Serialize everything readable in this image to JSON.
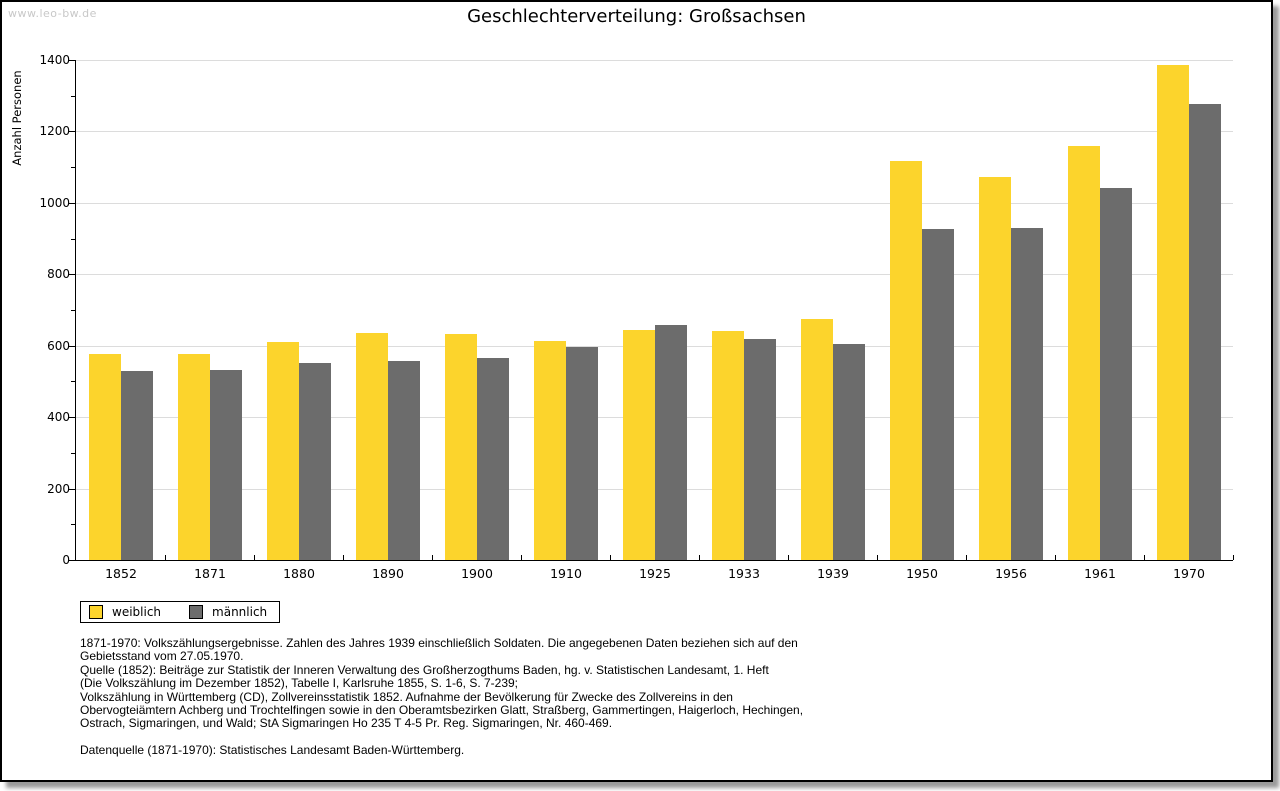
{
  "watermark": "www.leo-bw.de",
  "chart_data": {
    "type": "bar",
    "title": "Geschlechterverteilung: Großsachsen",
    "ylabel": "Anzahl Personen",
    "xlabel": "",
    "ylim": [
      0,
      1400
    ],
    "ytick_step": 200,
    "ytick_minor_step": 100,
    "grid": true,
    "legend_position": "bottom-left",
    "categories": [
      "1852",
      "1871",
      "1880",
      "1890",
      "1900",
      "1910",
      "1925",
      "1933",
      "1939",
      "1950",
      "1956",
      "1961",
      "1970"
    ],
    "series": [
      {
        "name": "weiblich",
        "color": "#fcd42c",
        "values": [
          578,
          576,
          611,
          635,
          633,
          614,
          645,
          640,
          675,
          1118,
          1071,
          1158,
          1386
        ]
      },
      {
        "name": "männlich",
        "color": "#6c6c6c",
        "values": [
          530,
          533,
          551,
          556,
          566,
          597,
          657,
          620,
          604,
          926,
          929,
          1041,
          1277
        ]
      }
    ]
  },
  "footnotes": {
    "lines": [
      "1871-1970: Volkszählungsergebnisse. Zahlen des Jahres 1939 einschließlich Soldaten. Die angegebenen Daten beziehen sich auf den",
      "Gebietsstand vom 27.05.1970.",
      "Quelle (1852): Beiträge zur Statistik der Inneren Verwaltung des Großherzogthums Baden, hg. v. Statistischen Landesamt, 1. Heft",
      "(Die Volkszählung im Dezember 1852), Tabelle I, Karlsruhe 1855, S. 1-6, S. 7-239;",
      "Volkszählung in Württemberg (CD), Zollvereinsstatistik 1852. Aufnahme der Bevölkerung für Zwecke des Zollvereins in den",
      "Obervogteiämtern Achberg und Trochtelfingen sowie in den Oberamtsbezirken Glatt, Straßberg, Gammertingen, Haigerloch, Hechingen,",
      "Ostrach, Sigmaringen, und Wald; StA Sigmaringen Ho 235 T 4-5 Pr. Reg. Sigmaringen, Nr. 460-469.",
      "",
      "Datenquelle (1871-1970): Statistisches Landesamt Baden-Württemberg."
    ]
  },
  "colors": {
    "bar_yellow": "#fcd42c",
    "bar_gray": "#6c6c6c",
    "gridline": "#dcdcdc",
    "watermark_gray": "#c8c8c8",
    "frame_border": "#000000",
    "frame_shadow": "#9b9b9b"
  }
}
